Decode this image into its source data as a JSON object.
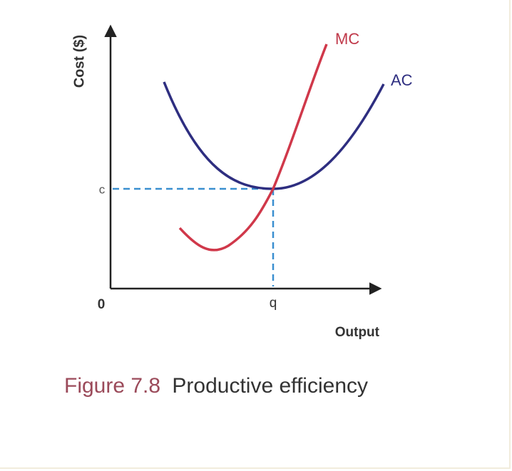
{
  "diagram": {
    "y_axis_label": "Cost ($)",
    "x_axis_label": "Output",
    "origin_label": "0",
    "c_label": "c",
    "q_label": "q",
    "mc_label": "MC",
    "ac_label": "AC"
  },
  "caption": {
    "number": "Figure 7.8",
    "title": "Productive efficiency"
  }
}
